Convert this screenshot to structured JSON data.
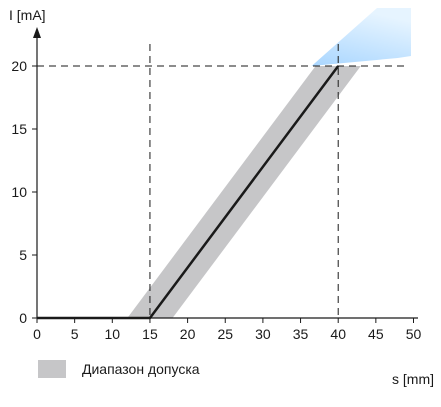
{
  "chart_data": {
    "type": "line",
    "ylabel": "I [mA]",
    "xlabel": "s [mm]",
    "xlim": [
      0,
      50
    ],
    "ylim": [
      0,
      22
    ],
    "x_ticks": [
      0,
      5,
      10,
      15,
      20,
      25,
      30,
      35,
      40,
      45,
      50
    ],
    "y_ticks": [
      0,
      5,
      10,
      15,
      20
    ],
    "grid": false,
    "series": [
      {
        "x": [
          0,
          15,
          40
        ],
        "y": [
          0,
          0,
          20
        ]
      }
    ],
    "reference_lines": {
      "vertical_x": [
        15,
        40
      ],
      "horizontal_y": [
        20
      ]
    },
    "tolerance_band": {
      "label": "Диапазон допуска",
      "color": "#c6c6c8",
      "lower_edge": {
        "x": [
          12,
          37
        ],
        "y": [
          0,
          20
        ]
      },
      "upper_edge": {
        "x": [
          18,
          43
        ],
        "y": [
          0,
          20
        ]
      }
    },
    "colors": {
      "line": "#1a1a1a",
      "band": "#c6c6c8",
      "band_highlight": "#bfe3ff"
    }
  },
  "legend": {
    "label": "Диапазон допуска"
  }
}
